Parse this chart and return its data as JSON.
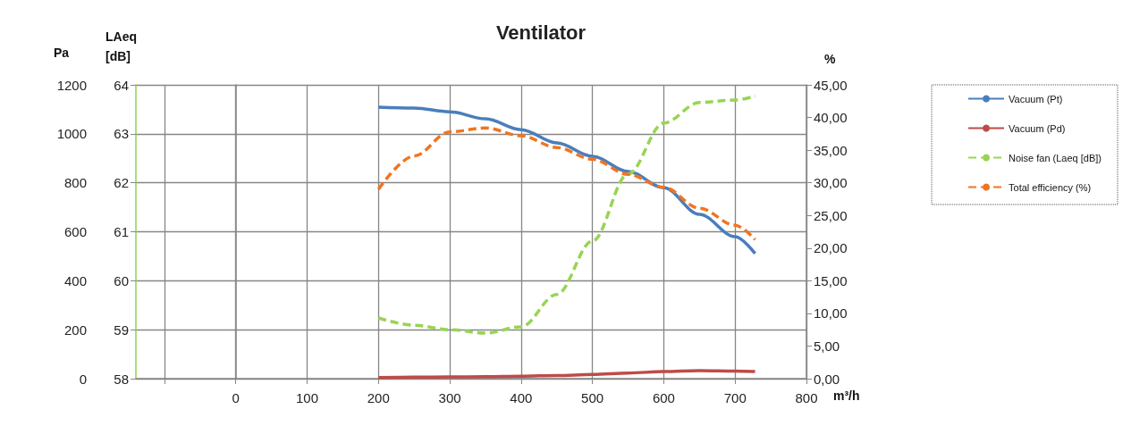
{
  "chart_data": {
    "type": "line",
    "title": "Ventilator",
    "xlabel": "m³/h",
    "ylabel": "Pa",
    "y3label": "LAeq [dB]",
    "y2label": "%",
    "x": [
      200,
      250,
      300,
      350,
      400,
      450,
      500,
      550,
      600,
      650,
      700,
      728
    ],
    "xlim": [
      -140,
      800
    ],
    "xticks": [
      {
        "value": -100,
        "label": null
      },
      0,
      100,
      200,
      300,
      400,
      500,
      600,
      700,
      800
    ],
    "ylim": [
      0,
      1200
    ],
    "yticks": [
      0,
      200,
      400,
      600,
      800,
      1000,
      1200
    ],
    "y3lim": [
      58,
      64
    ],
    "y3ticks": [
      58,
      59,
      60,
      61,
      62,
      63,
      64
    ],
    "y2lim": [
      0,
      45
    ],
    "y2ticks": [
      {
        "value": 0,
        "label": "0,00"
      },
      {
        "value": 5,
        "label": "5,00"
      },
      {
        "value": 10,
        "label": "10,00"
      },
      {
        "value": 15,
        "label": "15,00"
      },
      {
        "value": 20,
        "label": "20,00"
      },
      {
        "value": 25,
        "label": "25,00"
      },
      {
        "value": 30,
        "label": "30,00"
      },
      {
        "value": 35,
        "label": "35,00"
      },
      {
        "value": 40,
        "label": "40,00"
      },
      {
        "value": 45,
        "label": "45,00"
      }
    ],
    "series": [
      {
        "name": "Vacuum (Pt)",
        "color": "#4a7ebb",
        "line_style": "solid",
        "values": [
          1109,
          1105,
          1090,
          1061,
          1017,
          963,
          908,
          846,
          780,
          671,
          580,
          511
        ]
      },
      {
        "name": "Vacuum (Pd)",
        "color": "#be4b48",
        "line_style": "solid",
        "values": [
          5,
          6,
          7,
          8,
          10,
          13,
          17,
          23,
          29,
          33,
          31,
          29
        ]
      },
      {
        "name": "Noise fan (Laeq [dB])",
        "color": "#98d454",
        "line_style": "dashed",
        "axis": "y3",
        "values": [
          59.24,
          59.09,
          59.0,
          58.93,
          59.06,
          59.72,
          60.81,
          62.18,
          63.22,
          63.64,
          63.69,
          63.77
        ]
      },
      {
        "name": "Total efficiency (%)",
        "color": "#f07520",
        "line_style": "dashed",
        "axis": "y2",
        "values": [
          29.0,
          34.1,
          37.8,
          38.4,
          37.2,
          35.4,
          33.6,
          31.3,
          29.3,
          26.1,
          23.5,
          21.3
        ]
      }
    ],
    "grid": true,
    "legend": "right",
    "marker": "none"
  }
}
